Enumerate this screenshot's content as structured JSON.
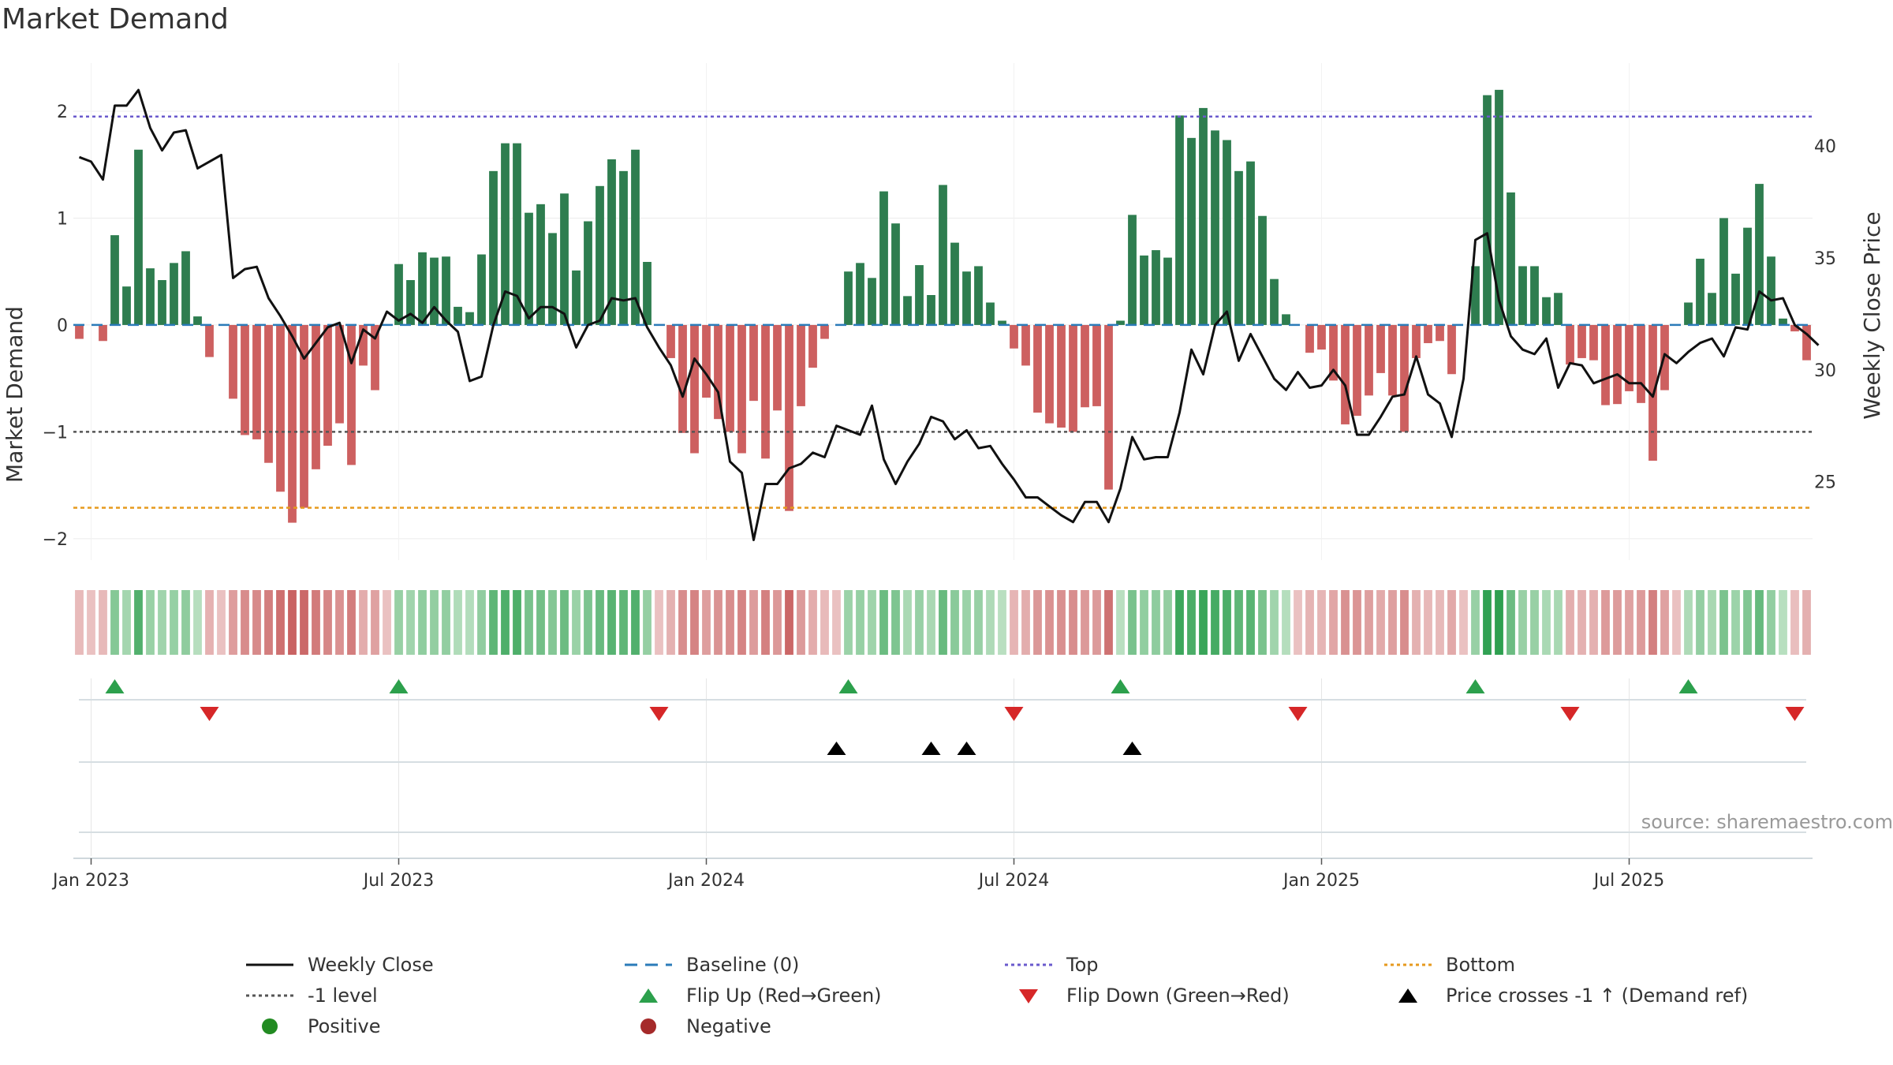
{
  "title": "Market Demand",
  "source": "source: sharemaestro.com",
  "chart_data": {
    "type": "bar",
    "title": "Market Demand",
    "ylabel": "Market Demand",
    "y2label": "Weekly Close Price",
    "ylim": [
      -2.2,
      2.45
    ],
    "y2lim": [
      21.5,
      43.7
    ],
    "yticks": [
      {
        "v": 2,
        "t": "2"
      },
      {
        "v": 1,
        "t": "1"
      },
      {
        "v": 0,
        "t": "0"
      },
      {
        "v": -1,
        "t": "−1"
      },
      {
        "v": -2,
        "t": "−2"
      }
    ],
    "y2ticks": [
      {
        "v": 40,
        "t": "40"
      },
      {
        "v": 35,
        "t": "35"
      },
      {
        "v": 30,
        "t": "30"
      },
      {
        "v": 25,
        "t": "25"
      }
    ],
    "xticks": [
      {
        "i": 1,
        "t": "Jan 2023"
      },
      {
        "i": 27,
        "t": "Jul 2023"
      },
      {
        "i": 53,
        "t": "Jan 2024"
      },
      {
        "i": 79,
        "t": "Jul 2024"
      },
      {
        "i": 105,
        "t": "Jan 2025"
      },
      {
        "i": 131,
        "t": "Jul 2025"
      }
    ],
    "levels": {
      "top": 1.95,
      "minus_one": -1,
      "bottom": -1.71,
      "baseline": 0
    },
    "colors": {
      "positive_bar": "#2e7d4f",
      "negative_bar": "#cd6060",
      "price_line": "#111111",
      "top_line": "#6a5acd",
      "bottom_line": "#e69a1e",
      "minus_one_line": "#555555",
      "baseline": "#2b7bb9",
      "flip_up": "#2ca04c",
      "flip_down": "#d62728",
      "cross": "#000000"
    },
    "demand": [
      -0.13,
      0,
      -0.15,
      0.84,
      0.36,
      1.64,
      0.53,
      0.42,
      0.58,
      0.69,
      0.08,
      -0.3,
      0,
      -0.69,
      -1.03,
      -1.07,
      -1.29,
      -1.56,
      -1.85,
      -1.71,
      -1.35,
      -1.13,
      -0.92,
      -1.31,
      -0.38,
      -0.61,
      0,
      0.57,
      0.42,
      0.68,
      0.63,
      0.64,
      0.17,
      0.12,
      0.66,
      1.44,
      1.7,
      1.7,
      1.05,
      1.13,
      0.86,
      1.23,
      0.51,
      0.97,
      1.3,
      1.55,
      1.44,
      1.64,
      0.59,
      0,
      -0.31,
      -1.01,
      -1.2,
      -0.68,
      -0.88,
      -1.0,
      -1.2,
      -0.71,
      -1.25,
      -0.8,
      -1.74,
      -0.76,
      -0.4,
      -0.13,
      0,
      0.5,
      0.58,
      0.44,
      1.25,
      0.95,
      0.27,
      0.56,
      0.28,
      1.31,
      0.77,
      0.5,
      0.55,
      0.21,
      0.04,
      -0.22,
      -0.38,
      -0.82,
      -0.92,
      -0.96,
      -1.0,
      -0.77,
      -0.76,
      -1.54,
      0.04,
      1.03,
      0.65,
      0.7,
      0.63,
      1.96,
      1.75,
      2.03,
      1.82,
      1.73,
      1.44,
      1.53,
      1.02,
      0.43,
      0.1,
      0,
      -0.26,
      -0.23,
      -0.52,
      -0.93,
      -0.85,
      -0.66,
      -0.45,
      -0.66,
      -1.0,
      -0.31,
      -0.17,
      -0.15,
      -0.46,
      0,
      0.55,
      2.15,
      2.2,
      1.24,
      0.55,
      0.55,
      0.26,
      0.3,
      -0.37,
      -0.31,
      -0.33,
      -0.75,
      -0.74,
      -0.62,
      -0.73,
      -1.27,
      -0.61,
      0,
      0.21,
      0.62,
      0.3,
      1.0,
      0.48,
      0.91,
      1.32,
      0.64,
      0.06,
      -0.06,
      -0.33
    ],
    "price": [
      39.5,
      39.3,
      38.5,
      41.8,
      41.8,
      42.5,
      40.8,
      39.8,
      40.6,
      40.7,
      39.0,
      39.3,
      39.6,
      34.1,
      34.5,
      34.6,
      33.2,
      32.4,
      31.5,
      30.5,
      31.2,
      31.9,
      32.1,
      30.3,
      31.8,
      31.4,
      32.6,
      32.2,
      32.5,
      32.1,
      32.8,
      32.2,
      31.7,
      29.5,
      29.7,
      32.0,
      33.5,
      33.3,
      32.3,
      32.8,
      32.8,
      32.5,
      31.0,
      32.0,
      32.2,
      33.2,
      33.1,
      33.2,
      31.9,
      31.0,
      30.2,
      28.8,
      30.5,
      29.8,
      29.0,
      25.9,
      25.4,
      22.4,
      24.9,
      24.9,
      25.6,
      25.8,
      26.3,
      26.1,
      27.5,
      27.3,
      27.1,
      28.4,
      26.0,
      24.9,
      25.9,
      26.7,
      27.9,
      27.7,
      26.9,
      27.3,
      26.5,
      26.6,
      25.8,
      25.1,
      24.3,
      24.3,
      23.9,
      23.5,
      23.2,
      24.1,
      24.1,
      23.2,
      24.7,
      27.0,
      26.0,
      26.1,
      26.1,
      28.1,
      30.9,
      29.8,
      32.0,
      32.6,
      30.4,
      31.6,
      30.6,
      29.6,
      29.1,
      29.9,
      29.2,
      29.3,
      30.0,
      29.3,
      27.1,
      27.1,
      27.9,
      28.8,
      28.9,
      30.6,
      28.9,
      28.5,
      27.0,
      29.6,
      35.8,
      36.1,
      33.1,
      31.5,
      30.9,
      30.7,
      31.4,
      29.2,
      30.3,
      30.2,
      29.4,
      29.6,
      29.8,
      29.4,
      29.4,
      28.8,
      30.7,
      30.3,
      30.8,
      31.2,
      31.4,
      30.6,
      31.9,
      31.8,
      33.5,
      33.1,
      33.2,
      32.0,
      31.6,
      31.1
    ]
  },
  "legend": {
    "weekly_close": "Weekly Close",
    "baseline": "Baseline (0)",
    "top": "Top",
    "bottom": "Bottom",
    "minus_one": "-1 level",
    "flip_up": "Flip Up (Red→Green)",
    "flip_down": "Flip Down (Green→Red)",
    "price_cross": "Price crosses -1 ↑ (Demand ref)",
    "positive": "Positive",
    "negative": "Negative"
  }
}
